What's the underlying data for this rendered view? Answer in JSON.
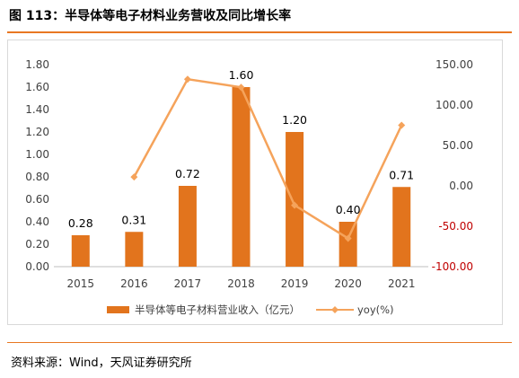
{
  "figure": {
    "title": "图 113：半导体等电子材料业务营收及同比增长率",
    "source": "资料来源：Wind，天风证券研究所"
  },
  "colors": {
    "bar": "#e2741d",
    "line": "#f5a35b",
    "accent": "#e87722",
    "right_axis_negative": "#c00000"
  },
  "chart_data": {
    "type": "bar",
    "categories": [
      "2015",
      "2016",
      "2017",
      "2018",
      "2019",
      "2020",
      "2021"
    ],
    "series": [
      {
        "name": "半导体等电子材料营业收入（亿元）",
        "type": "bar",
        "axis": "left",
        "values": [
          0.28,
          0.31,
          0.72,
          1.6,
          1.2,
          0.4,
          0.71
        ],
        "labels": [
          "0.28",
          "0.31",
          "0.72",
          "1.60",
          "1.20",
          "0.40",
          "0.71"
        ]
      },
      {
        "name": "yoy(%)",
        "type": "line",
        "axis": "right",
        "marker": "diamond",
        "values": [
          null,
          11,
          132,
          122,
          -24,
          -65,
          75
        ]
      }
    ],
    "y_left": {
      "ylim": [
        0,
        1.8
      ],
      "ticks": [
        0,
        0.2,
        0.4,
        0.6,
        0.8,
        1.0,
        1.2,
        1.4,
        1.6,
        1.8
      ],
      "tick_labels": [
        "0.00",
        "0.20",
        "0.40",
        "0.60",
        "0.80",
        "1.00",
        "1.20",
        "1.40",
        "1.60",
        "1.80"
      ]
    },
    "y_right": {
      "ylim": [
        -100,
        150
      ],
      "ticks": [
        -100,
        -50,
        0,
        50,
        100,
        150
      ],
      "tick_labels": [
        "-100.00",
        "-50.00",
        "0.00",
        "50.00",
        "100.00",
        "150.00"
      ]
    },
    "grid": false,
    "legend": "bottom"
  }
}
